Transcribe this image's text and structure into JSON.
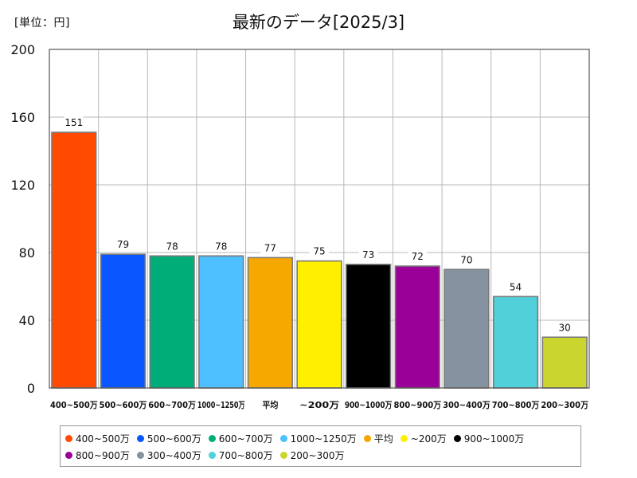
{
  "unit_label": "[単位：円]",
  "chart_data": {
    "type": "bar",
    "title": "最新のデータ[2025/3]",
    "xlabel": "",
    "ylabel": "",
    "ylim": [
      0,
      200
    ],
    "yticks": [
      0,
      40,
      80,
      120,
      160,
      200
    ],
    "grid": true,
    "legend_position": "bottom",
    "categories": [
      "400~500万",
      "500~600万",
      "600~700万",
      "1000~1250万",
      "平均",
      "~200万",
      "900~1000万",
      "800~900万",
      "300~400万",
      "700~800万",
      "200~300万"
    ],
    "tick_labels": [
      "400~500万",
      "500~600万",
      "600~700万",
      "1000~1250万",
      "平均",
      "~200万",
      "900~1000万",
      "800~900万",
      "300~400万",
      "700~800万",
      "200~300万"
    ],
    "values": [
      151,
      79,
      78,
      78,
      77,
      75,
      73,
      72,
      70,
      54,
      30
    ],
    "colors": [
      "#ff4a00",
      "#0a57ff",
      "#00ad78",
      "#4fc0ff",
      "#f7a800",
      "#fff000",
      "#000000",
      "#9a0098",
      "#84939f",
      "#52d0da",
      "#cad52f"
    ]
  }
}
